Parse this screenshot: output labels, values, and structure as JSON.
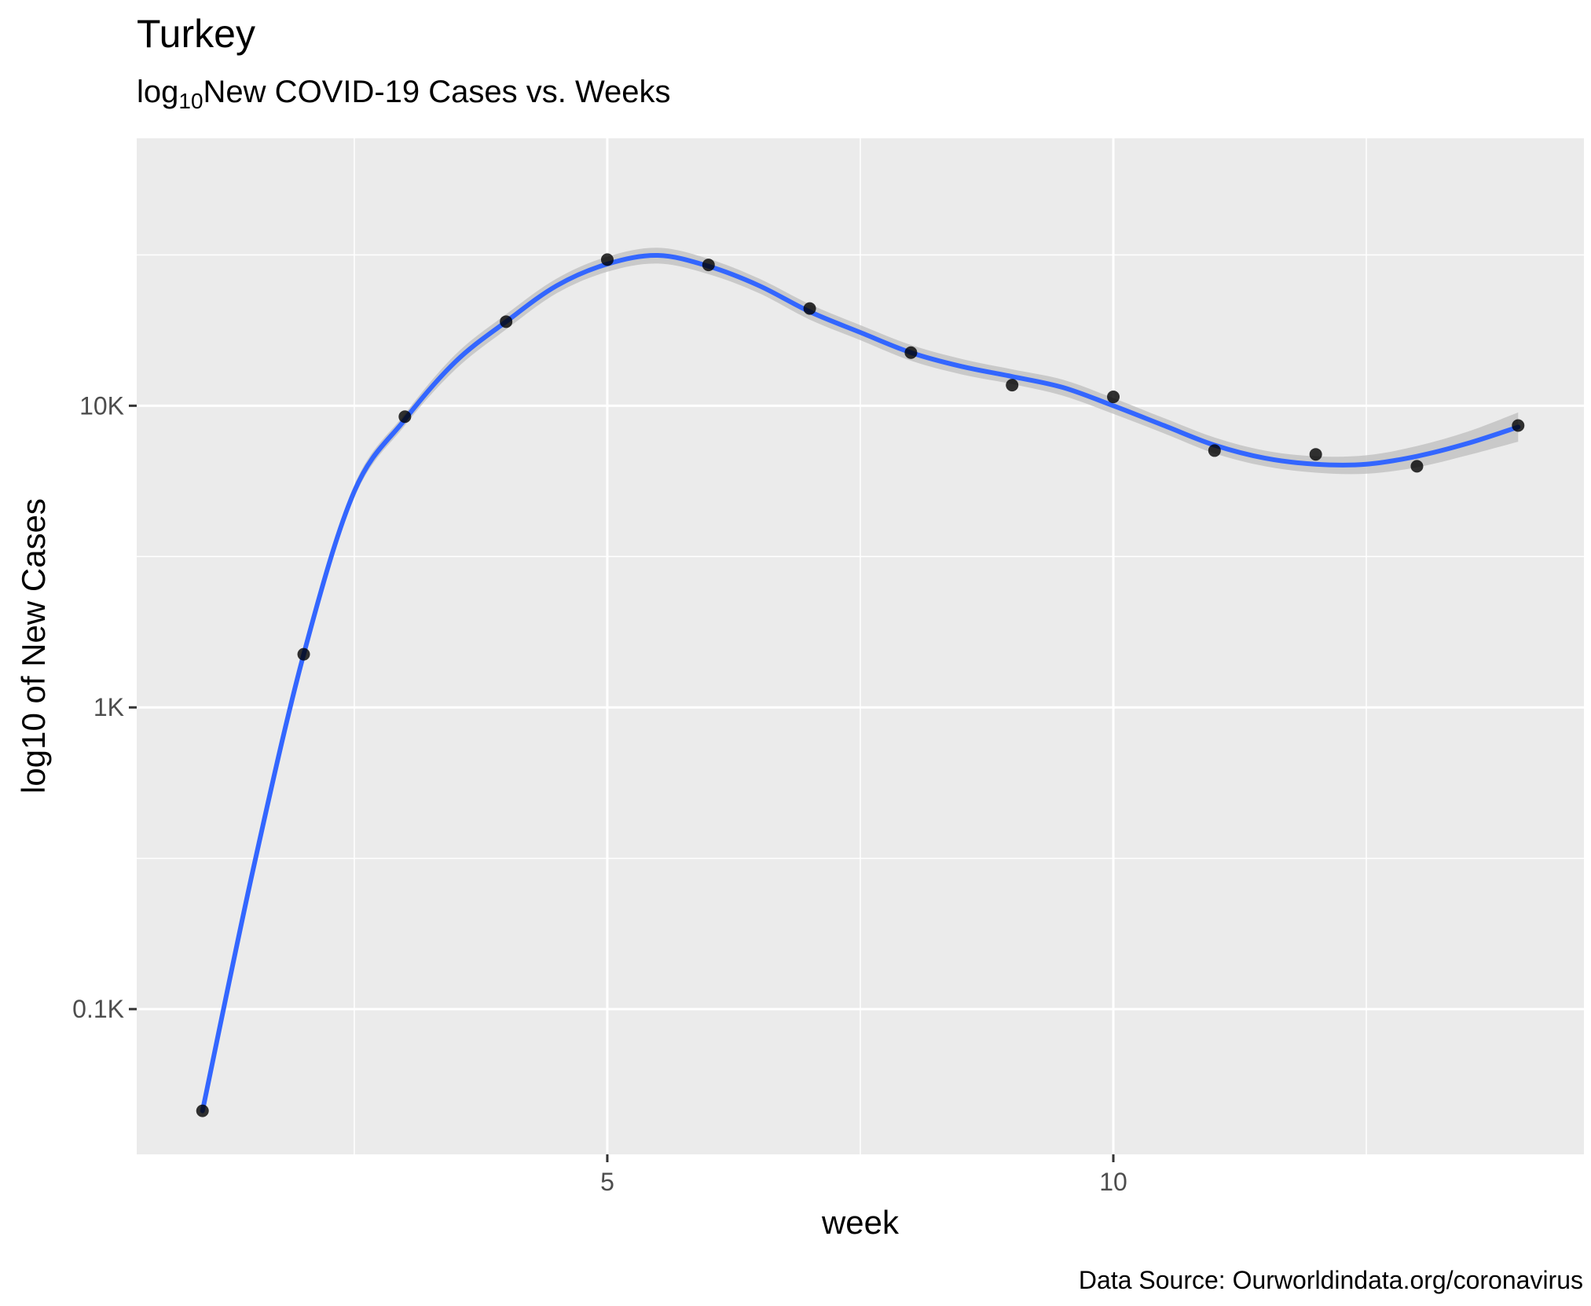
{
  "chart_data": {
    "type": "scatter",
    "title": "Turkey",
    "subtitle": {
      "prefix": "log",
      "subscript": "10",
      "text": "New COVID-19 Cases vs. Weeks"
    },
    "xlabel": "week",
    "ylabel": "log10 of New Cases",
    "caption": "Data Source: Ourworldindata.org/coronavirus",
    "x_scale": "linear",
    "y_scale": "log10",
    "xlim": [
      0.35,
      14.65
    ],
    "ylim": [
      33,
      77000
    ],
    "x_ticks": [
      {
        "value": 5,
        "label": "5"
      },
      {
        "value": 10,
        "label": "10"
      }
    ],
    "x_minor_ticks": [
      2.5,
      7.5,
      12.5
    ],
    "y_ticks": [
      {
        "value": 100,
        "label": "0.1K"
      },
      {
        "value": 1000,
        "label": "1K"
      },
      {
        "value": 10000,
        "label": "10K"
      }
    ],
    "y_minor_ticks": [
      316,
      3162,
      31623
    ],
    "grid": true,
    "background": "#EBEBEB",
    "point_color": "#000000",
    "smooth_color": "#3366FF",
    "ribbon_color": "#BEBEBE",
    "series": [
      {
        "x": [
          1,
          2,
          3,
          4,
          5,
          6,
          7,
          8,
          9,
          10,
          11,
          12,
          13,
          14
        ],
        "y": [
          46,
          1500,
          9200,
          19000,
          30500,
          29300,
          21000,
          15000,
          11700,
          10700,
          7100,
          6900,
          6300,
          8600
        ]
      }
    ],
    "smooth": {
      "x": [
        1,
        1.5,
        2,
        2.5,
        3,
        3.5,
        4,
        4.5,
        5,
        5.5,
        6,
        6.5,
        7,
        7.5,
        8,
        8.5,
        9,
        9.5,
        10,
        10.5,
        11,
        11.5,
        12,
        12.5,
        13,
        13.5,
        14
      ],
      "y": [
        46,
        290,
        1500,
        5200,
        9000,
        14000,
        19000,
        25000,
        29500,
        31500,
        29000,
        25000,
        20500,
        17500,
        15000,
        13500,
        12500,
        11500,
        10000,
        8600,
        7400,
        6700,
        6400,
        6400,
        6800,
        7500,
        8500
      ],
      "lower": [
        44,
        275,
        1420,
        4950,
        8600,
        13200,
        17900,
        23600,
        27800,
        29600,
        27300,
        23600,
        19300,
        16500,
        14100,
        12700,
        11800,
        10800,
        9400,
        8100,
        6950,
        6300,
        6000,
        5950,
        6250,
        6850,
        7600
      ],
      "upper": [
        48,
        305,
        1580,
        5450,
        9400,
        14800,
        20100,
        26400,
        31200,
        33400,
        30700,
        26400,
        21700,
        18500,
        15900,
        14300,
        13200,
        12200,
        10600,
        9100,
        7850,
        7100,
        6800,
        6850,
        7350,
        8200,
        9500
      ]
    }
  }
}
